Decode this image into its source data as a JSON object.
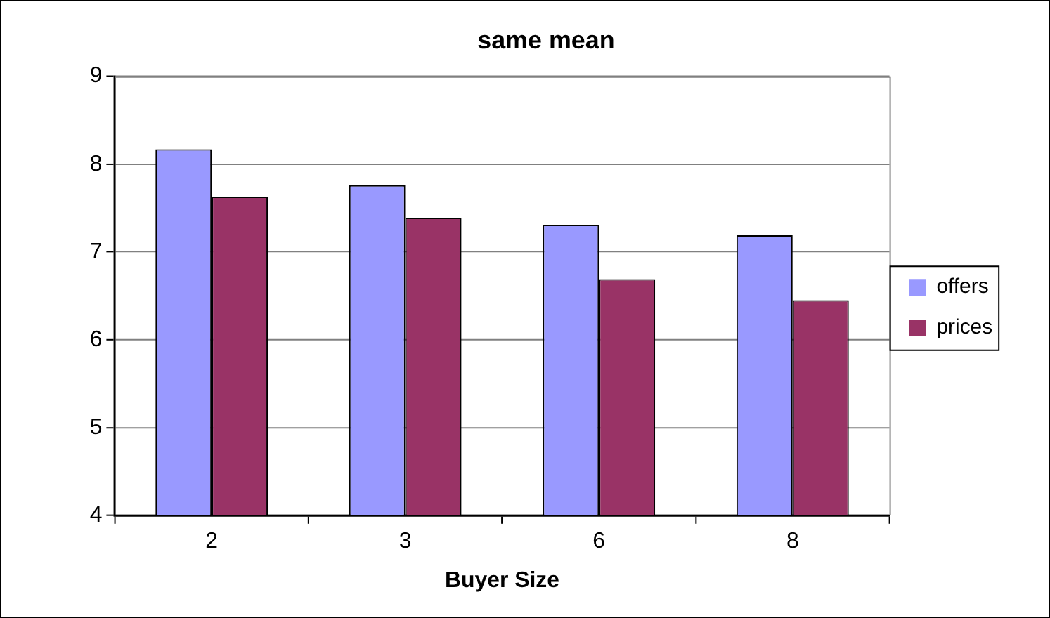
{
  "chart_data": {
    "type": "bar",
    "title": "same mean",
    "xlabel": "Buyer Size",
    "categories": [
      "2",
      "3",
      "6",
      "8"
    ],
    "series": [
      {
        "name": "offers",
        "color": "#9999ff",
        "values": [
          8.17,
          7.76,
          7.31,
          7.19
        ]
      },
      {
        "name": "prices",
        "color": "#993366",
        "values": [
          7.63,
          7.39,
          6.69,
          6.45
        ]
      }
    ],
    "ylim": [
      4,
      9
    ],
    "yticks": [
      4,
      5,
      6,
      7,
      8,
      9
    ],
    "grid": "y",
    "legend": "right"
  }
}
